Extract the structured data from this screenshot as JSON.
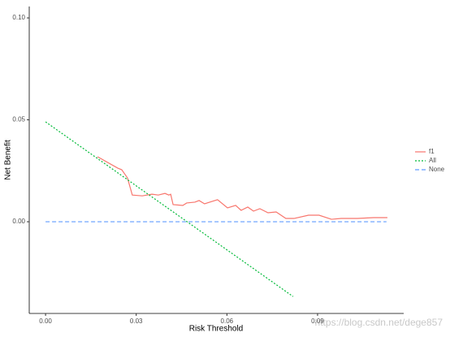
{
  "chart_data": {
    "type": "line",
    "xlabel": "Risk Threshold",
    "ylabel": "Net Benefit",
    "xlim": [
      -0.0054,
      0.1185
    ],
    "ylim": [
      -0.045,
      0.1056
    ],
    "xticks": [
      {
        "value": 0,
        "label": "0.00"
      },
      {
        "value": 0.03,
        "label": "0.03"
      },
      {
        "value": 0.06,
        "label": "0.06"
      },
      {
        "value": 0.09,
        "label": "0.09"
      }
    ],
    "yticks": [
      {
        "value": 0,
        "label": "0.00"
      },
      {
        "value": 0.05,
        "label": "0.05"
      },
      {
        "value": 0.1,
        "label": "0.10"
      }
    ],
    "grid": false,
    "legend": "right",
    "watermark": "https://blog.csdn.net/dege857",
    "series": [
      {
        "name": "f1",
        "color": "#f8766d",
        "linestyle": "solid",
        "x": [
          0.0172,
          0.0239,
          0.0252,
          0.0271,
          0.0287,
          0.032,
          0.0352,
          0.0373,
          0.0395,
          0.0408,
          0.0414,
          0.0422,
          0.0454,
          0.0467,
          0.0494,
          0.0508,
          0.0526,
          0.0569,
          0.0602,
          0.0629,
          0.0647,
          0.0669,
          0.0688,
          0.0709,
          0.0736,
          0.0763,
          0.0795,
          0.0822,
          0.087,
          0.0905,
          0.0946,
          0.0978,
          0.1032,
          0.1085,
          0.1131
        ],
        "values": [
          0.0319,
          0.0263,
          0.0255,
          0.0215,
          0.0131,
          0.0127,
          0.0135,
          0.0131,
          0.0139,
          0.0131,
          0.0135,
          0.0084,
          0.008,
          0.0092,
          0.0096,
          0.0104,
          0.0088,
          0.0108,
          0.0068,
          0.008,
          0.0056,
          0.0072,
          0.0052,
          0.0064,
          0.0044,
          0.0048,
          0.0016,
          0.0016,
          0.0032,
          0.0032,
          0.0012,
          0.0016,
          0.0016,
          0.002,
          0.002
        ]
      },
      {
        "name": "All",
        "color": "#00ba38",
        "linestyle": "dotted",
        "x": [
          0,
          0.0819
        ],
        "values": [
          0.049,
          -0.0367
        ]
      },
      {
        "name": "None",
        "color": "#619cff",
        "linestyle": "dashed",
        "x": [
          0,
          0.1128
        ],
        "values": [
          0,
          0
        ]
      }
    ]
  }
}
